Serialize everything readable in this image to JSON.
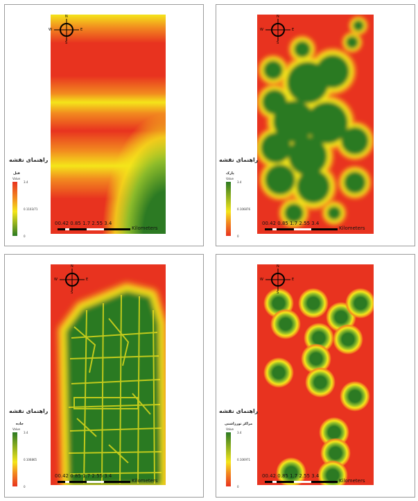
{
  "legend_title": "راهنمای نقشه",
  "value_label": "Value",
  "scale": {
    "ticks": "00.42 0.85   1.7   2.55   3.4",
    "unit": "Kilometers"
  },
  "compass": {
    "n": "N",
    "s": "S",
    "w": "W",
    "e": "E"
  },
  "panels": [
    {
      "layer": "قتل",
      "max": "3.4",
      "mid": "0.1103/71",
      "min": "0",
      "ramp": "red-to-green"
    },
    {
      "layer": "پارک",
      "max": "3.4",
      "mid": "0.106876",
      "min": "0",
      "ramp": "green-to-red"
    },
    {
      "layer": "جاده",
      "max": "3.4",
      "mid": "0.106865",
      "min": "0",
      "ramp": "green-to-red"
    },
    {
      "layer": "مراکز تورزاشنی",
      "max": "3.4",
      "mid": "0.106971",
      "min": "0",
      "ramp": "green-to-red"
    }
  ],
  "colors": {
    "red": "#e8331f",
    "orange": "#f28a1f",
    "yellow": "#f4e51a",
    "green": "#2c7a23"
  }
}
